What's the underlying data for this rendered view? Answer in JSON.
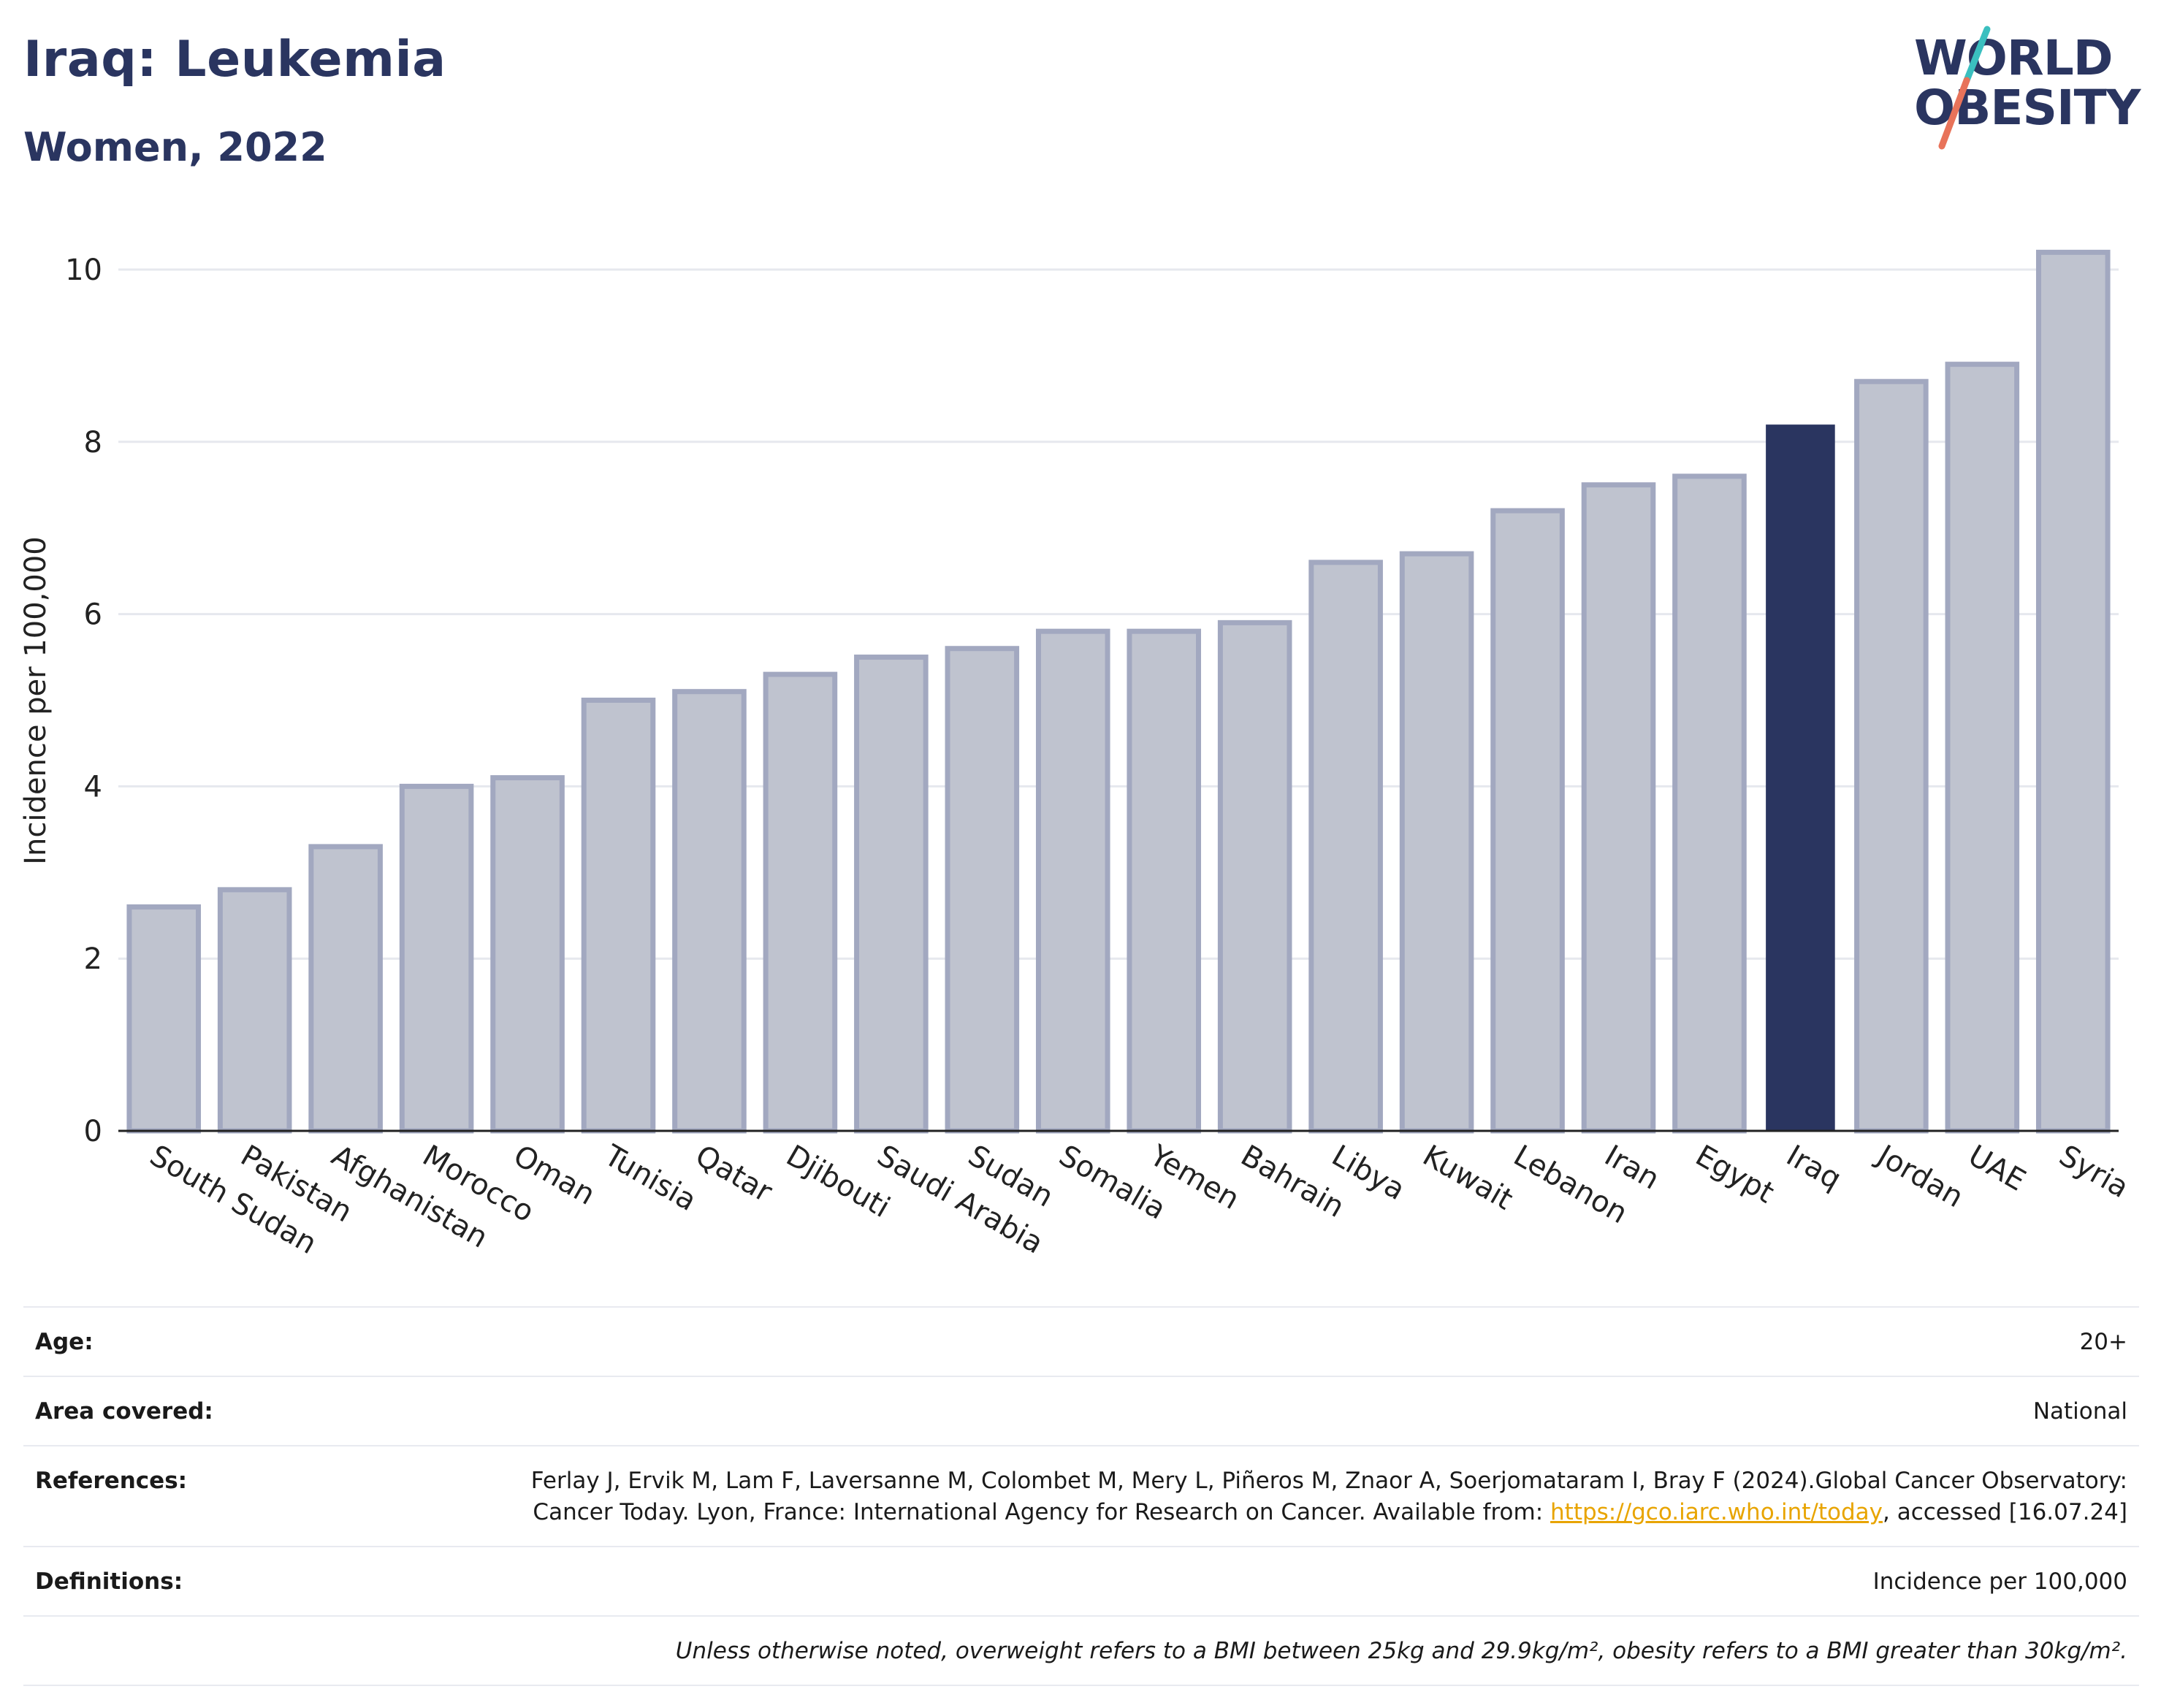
{
  "header": {
    "title": "Iraq: Leukemia",
    "subtitle": "Women, 2022"
  },
  "logo": {
    "line1": "WORLD",
    "line2": "OBESITY",
    "brand_color": "#2a3560",
    "accent_teal": "#3bbfbf",
    "accent_coral": "#e8735a"
  },
  "chart_data": {
    "type": "bar",
    "title": "Iraq: Leukemia",
    "subtitle": "Women, 2022",
    "xlabel": "",
    "ylabel": "Incidence per 100,000",
    "ylim": [
      0,
      10.5
    ],
    "yticks": [
      0,
      2,
      4,
      6,
      8,
      10
    ],
    "grid": true,
    "categories": [
      "South Sudan",
      "Pakistan",
      "Afghanistan",
      "Morocco",
      "Oman",
      "Tunisia",
      "Qatar",
      "Djibouti",
      "Saudi Arabia",
      "Sudan",
      "Somalia",
      "Yemen",
      "Bahrain",
      "Libya",
      "Kuwait",
      "Lebanon",
      "Iran",
      "Egypt",
      "Iraq",
      "Jordan",
      "UAE",
      "Syria"
    ],
    "values": [
      2.6,
      2.8,
      3.3,
      4.0,
      4.1,
      5.0,
      5.1,
      5.3,
      5.5,
      5.6,
      5.8,
      5.8,
      5.9,
      6.6,
      6.7,
      7.2,
      7.5,
      7.6,
      8.2,
      8.7,
      8.9,
      10.2
    ],
    "highlight": "Iraq",
    "colors": {
      "bar_fill": "#bfc3cf",
      "bar_stroke": "#a2a8c0",
      "highlight_fill": "#2a3560",
      "grid": "#e6e8ee",
      "axis": "#222222"
    }
  },
  "meta": {
    "age_label": "Age:",
    "age_value": "20+",
    "area_label": "Area covered:",
    "area_value": "National",
    "references_label": "References:",
    "references_text_1": "Ferlay J, Ervik M, Lam F, Laversanne M, Colombet M, Mery L, Piñeros M, Znaor A, Soerjomataram I, Bray F (2024).Global Cancer Observatory: Cancer Today. Lyon, France: International Agency for Research on Cancer. Available from: ",
    "references_link": "https://gco.iarc.who.int/today",
    "references_text_2": ", accessed [16.07.24]",
    "definitions_label": "Definitions:",
    "definitions_value": "Incidence per 100,000",
    "note": "Unless otherwise noted, overweight refers to a BMI between 25kg and 29.9kg/m², obesity refers to a BMI greater than 30kg/m²."
  }
}
